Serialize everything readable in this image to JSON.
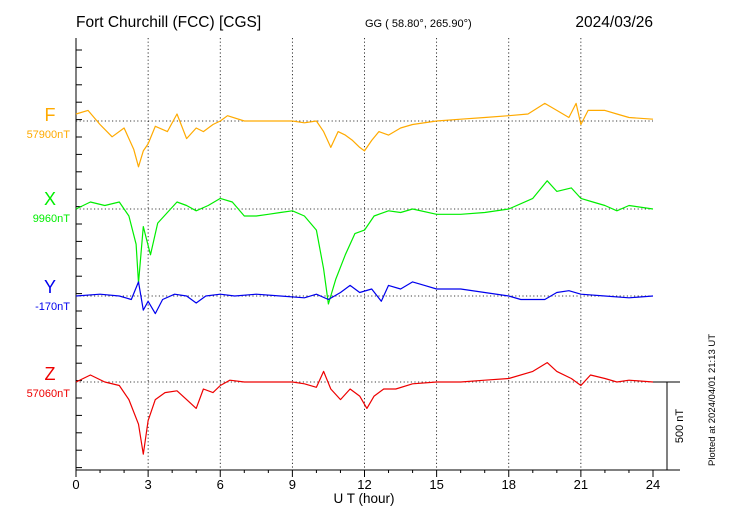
{
  "header": {
    "station": "Fort Churchill (FCC)  [CGS]",
    "coords": "GG ( 58.80°, 265.90°)",
    "date": "2024/03/26"
  },
  "footer": {
    "plotted": "Plotted at 2024/04/01 21:13 UT"
  },
  "chart_data": {
    "type": "line",
    "xlabel": "U T (hour)",
    "xlim": [
      0,
      24
    ],
    "x_ticks": [
      "0",
      "3",
      "6",
      "9",
      "12",
      "15",
      "18",
      "21",
      "24"
    ],
    "scale_label": "500 nT",
    "scale_nT": 500,
    "grid": "dotted vertical lines every 3 hours; dotted baseline per component",
    "series": [
      {
        "name": "F",
        "baseline_label": "57900nT",
        "baseline_nT": 57900,
        "color": "#ffaa00",
        "points": [
          [
            0,
            40
          ],
          [
            0.5,
            60
          ],
          [
            1,
            -20
          ],
          [
            1.5,
            -90
          ],
          [
            2,
            -40
          ],
          [
            2.4,
            -160
          ],
          [
            2.6,
            -260
          ],
          [
            2.8,
            -170
          ],
          [
            3,
            -130
          ],
          [
            3.3,
            -30
          ],
          [
            3.8,
            -60
          ],
          [
            4.2,
            40
          ],
          [
            4.6,
            -100
          ],
          [
            5,
            -40
          ],
          [
            5.3,
            -60
          ],
          [
            5.7,
            -20
          ],
          [
            6,
            0
          ],
          [
            6.3,
            30
          ],
          [
            7,
            0
          ],
          [
            8,
            0
          ],
          [
            9,
            0
          ],
          [
            9.5,
            -10
          ],
          [
            10,
            0
          ],
          [
            10.3,
            -60
          ],
          [
            10.6,
            -150
          ],
          [
            10.9,
            -60
          ],
          [
            11.2,
            -80
          ],
          [
            11.5,
            -110
          ],
          [
            11.8,
            -150
          ],
          [
            12,
            -170
          ],
          [
            12.3,
            -110
          ],
          [
            12.6,
            -60
          ],
          [
            13,
            -80
          ],
          [
            13.5,
            -40
          ],
          [
            14,
            -20
          ],
          [
            15,
            0
          ],
          [
            16,
            10
          ],
          [
            17,
            20
          ],
          [
            18,
            30
          ],
          [
            18.8,
            40
          ],
          [
            19.5,
            100
          ],
          [
            20,
            60
          ],
          [
            20.5,
            20
          ],
          [
            20.8,
            100
          ],
          [
            21,
            -20
          ],
          [
            21.3,
            60
          ],
          [
            22,
            60
          ],
          [
            22.5,
            40
          ],
          [
            23,
            20
          ],
          [
            24,
            10
          ]
        ]
      },
      {
        "name": "X",
        "baseline_label": "9960nT",
        "baseline_nT": 9960,
        "color": "#00ee00",
        "points": [
          [
            0,
            0
          ],
          [
            0.6,
            40
          ],
          [
            1.2,
            20
          ],
          [
            1.8,
            40
          ],
          [
            2.2,
            -40
          ],
          [
            2.5,
            -200
          ],
          [
            2.6,
            -420
          ],
          [
            2.8,
            -100
          ],
          [
            3.1,
            -260
          ],
          [
            3.4,
            -80
          ],
          [
            3.8,
            -20
          ],
          [
            4.2,
            40
          ],
          [
            4.6,
            20
          ],
          [
            5,
            -10
          ],
          [
            5.5,
            20
          ],
          [
            6,
            60
          ],
          [
            6.5,
            40
          ],
          [
            7,
            -40
          ],
          [
            7.5,
            -40
          ],
          [
            8,
            -30
          ],
          [
            8.5,
            -20
          ],
          [
            9,
            -10
          ],
          [
            9.5,
            -40
          ],
          [
            10,
            -120
          ],
          [
            10.3,
            -340
          ],
          [
            10.5,
            -540
          ],
          [
            10.8,
            -400
          ],
          [
            11.2,
            -260
          ],
          [
            11.6,
            -140
          ],
          [
            12,
            -120
          ],
          [
            12.4,
            -40
          ],
          [
            13,
            -10
          ],
          [
            13.5,
            -20
          ],
          [
            14,
            0
          ],
          [
            15,
            -30
          ],
          [
            16,
            -30
          ],
          [
            17,
            -20
          ],
          [
            18,
            0
          ],
          [
            19,
            60
          ],
          [
            19.6,
            160
          ],
          [
            20,
            100
          ],
          [
            20.6,
            120
          ],
          [
            21,
            60
          ],
          [
            21.5,
            40
          ],
          [
            22,
            20
          ],
          [
            22.5,
            -10
          ],
          [
            23,
            20
          ],
          [
            24,
            0
          ]
        ]
      },
      {
        "name": "Y",
        "baseline_label": "-170nT",
        "baseline_nT": -170,
        "color": "#0000ee",
        "points": [
          [
            0,
            0
          ],
          [
            1,
            10
          ],
          [
            1.8,
            0
          ],
          [
            2.3,
            -20
          ],
          [
            2.6,
            80
          ],
          [
            2.8,
            -80
          ],
          [
            3,
            -30
          ],
          [
            3.3,
            -100
          ],
          [
            3.6,
            -20
          ],
          [
            4.1,
            10
          ],
          [
            4.6,
            0
          ],
          [
            5,
            -40
          ],
          [
            5.4,
            0
          ],
          [
            6,
            10
          ],
          [
            6.6,
            0
          ],
          [
            7.5,
            10
          ],
          [
            8.5,
            0
          ],
          [
            9.5,
            -10
          ],
          [
            10,
            10
          ],
          [
            10.5,
            -20
          ],
          [
            11,
            20
          ],
          [
            11.4,
            60
          ],
          [
            11.8,
            20
          ],
          [
            12.3,
            40
          ],
          [
            12.7,
            -30
          ],
          [
            13,
            60
          ],
          [
            13.5,
            40
          ],
          [
            14,
            80
          ],
          [
            14.5,
            60
          ],
          [
            15,
            40
          ],
          [
            16,
            40
          ],
          [
            17,
            20
          ],
          [
            18,
            0
          ],
          [
            18.5,
            -20
          ],
          [
            19,
            -20
          ],
          [
            19.5,
            -20
          ],
          [
            20,
            20
          ],
          [
            20.5,
            30
          ],
          [
            21,
            10
          ],
          [
            22,
            0
          ],
          [
            23,
            -10
          ],
          [
            24,
            0
          ]
        ]
      },
      {
        "name": "Z",
        "baseline_label": "57060nT",
        "baseline_nT": 57060,
        "color": "#ee0000",
        "points": [
          [
            0,
            0
          ],
          [
            0.6,
            40
          ],
          [
            1.2,
            0
          ],
          [
            1.8,
            -20
          ],
          [
            2.2,
            -100
          ],
          [
            2.6,
            -240
          ],
          [
            2.8,
            -410
          ],
          [
            3,
            -220
          ],
          [
            3.3,
            -100
          ],
          [
            3.7,
            -60
          ],
          [
            4.2,
            -50
          ],
          [
            4.6,
            -100
          ],
          [
            5,
            -150
          ],
          [
            5.3,
            -40
          ],
          [
            5.7,
            -60
          ],
          [
            6,
            -20
          ],
          [
            6.4,
            10
          ],
          [
            7,
            0
          ],
          [
            8,
            0
          ],
          [
            9,
            0
          ],
          [
            9.5,
            -10
          ],
          [
            10,
            -30
          ],
          [
            10.3,
            60
          ],
          [
            10.6,
            -40
          ],
          [
            11,
            -100
          ],
          [
            11.4,
            -40
          ],
          [
            11.8,
            -80
          ],
          [
            12.1,
            -150
          ],
          [
            12.4,
            -80
          ],
          [
            12.8,
            -40
          ],
          [
            13.3,
            -40
          ],
          [
            14,
            -10
          ],
          [
            15,
            0
          ],
          [
            16,
            0
          ],
          [
            17,
            10
          ],
          [
            18,
            20
          ],
          [
            19,
            60
          ],
          [
            19.6,
            110
          ],
          [
            20,
            60
          ],
          [
            20.6,
            20
          ],
          [
            21,
            -20
          ],
          [
            21.4,
            40
          ],
          [
            22,
            20
          ],
          [
            22.5,
            0
          ],
          [
            23,
            10
          ],
          [
            24,
            0
          ]
        ]
      }
    ]
  }
}
